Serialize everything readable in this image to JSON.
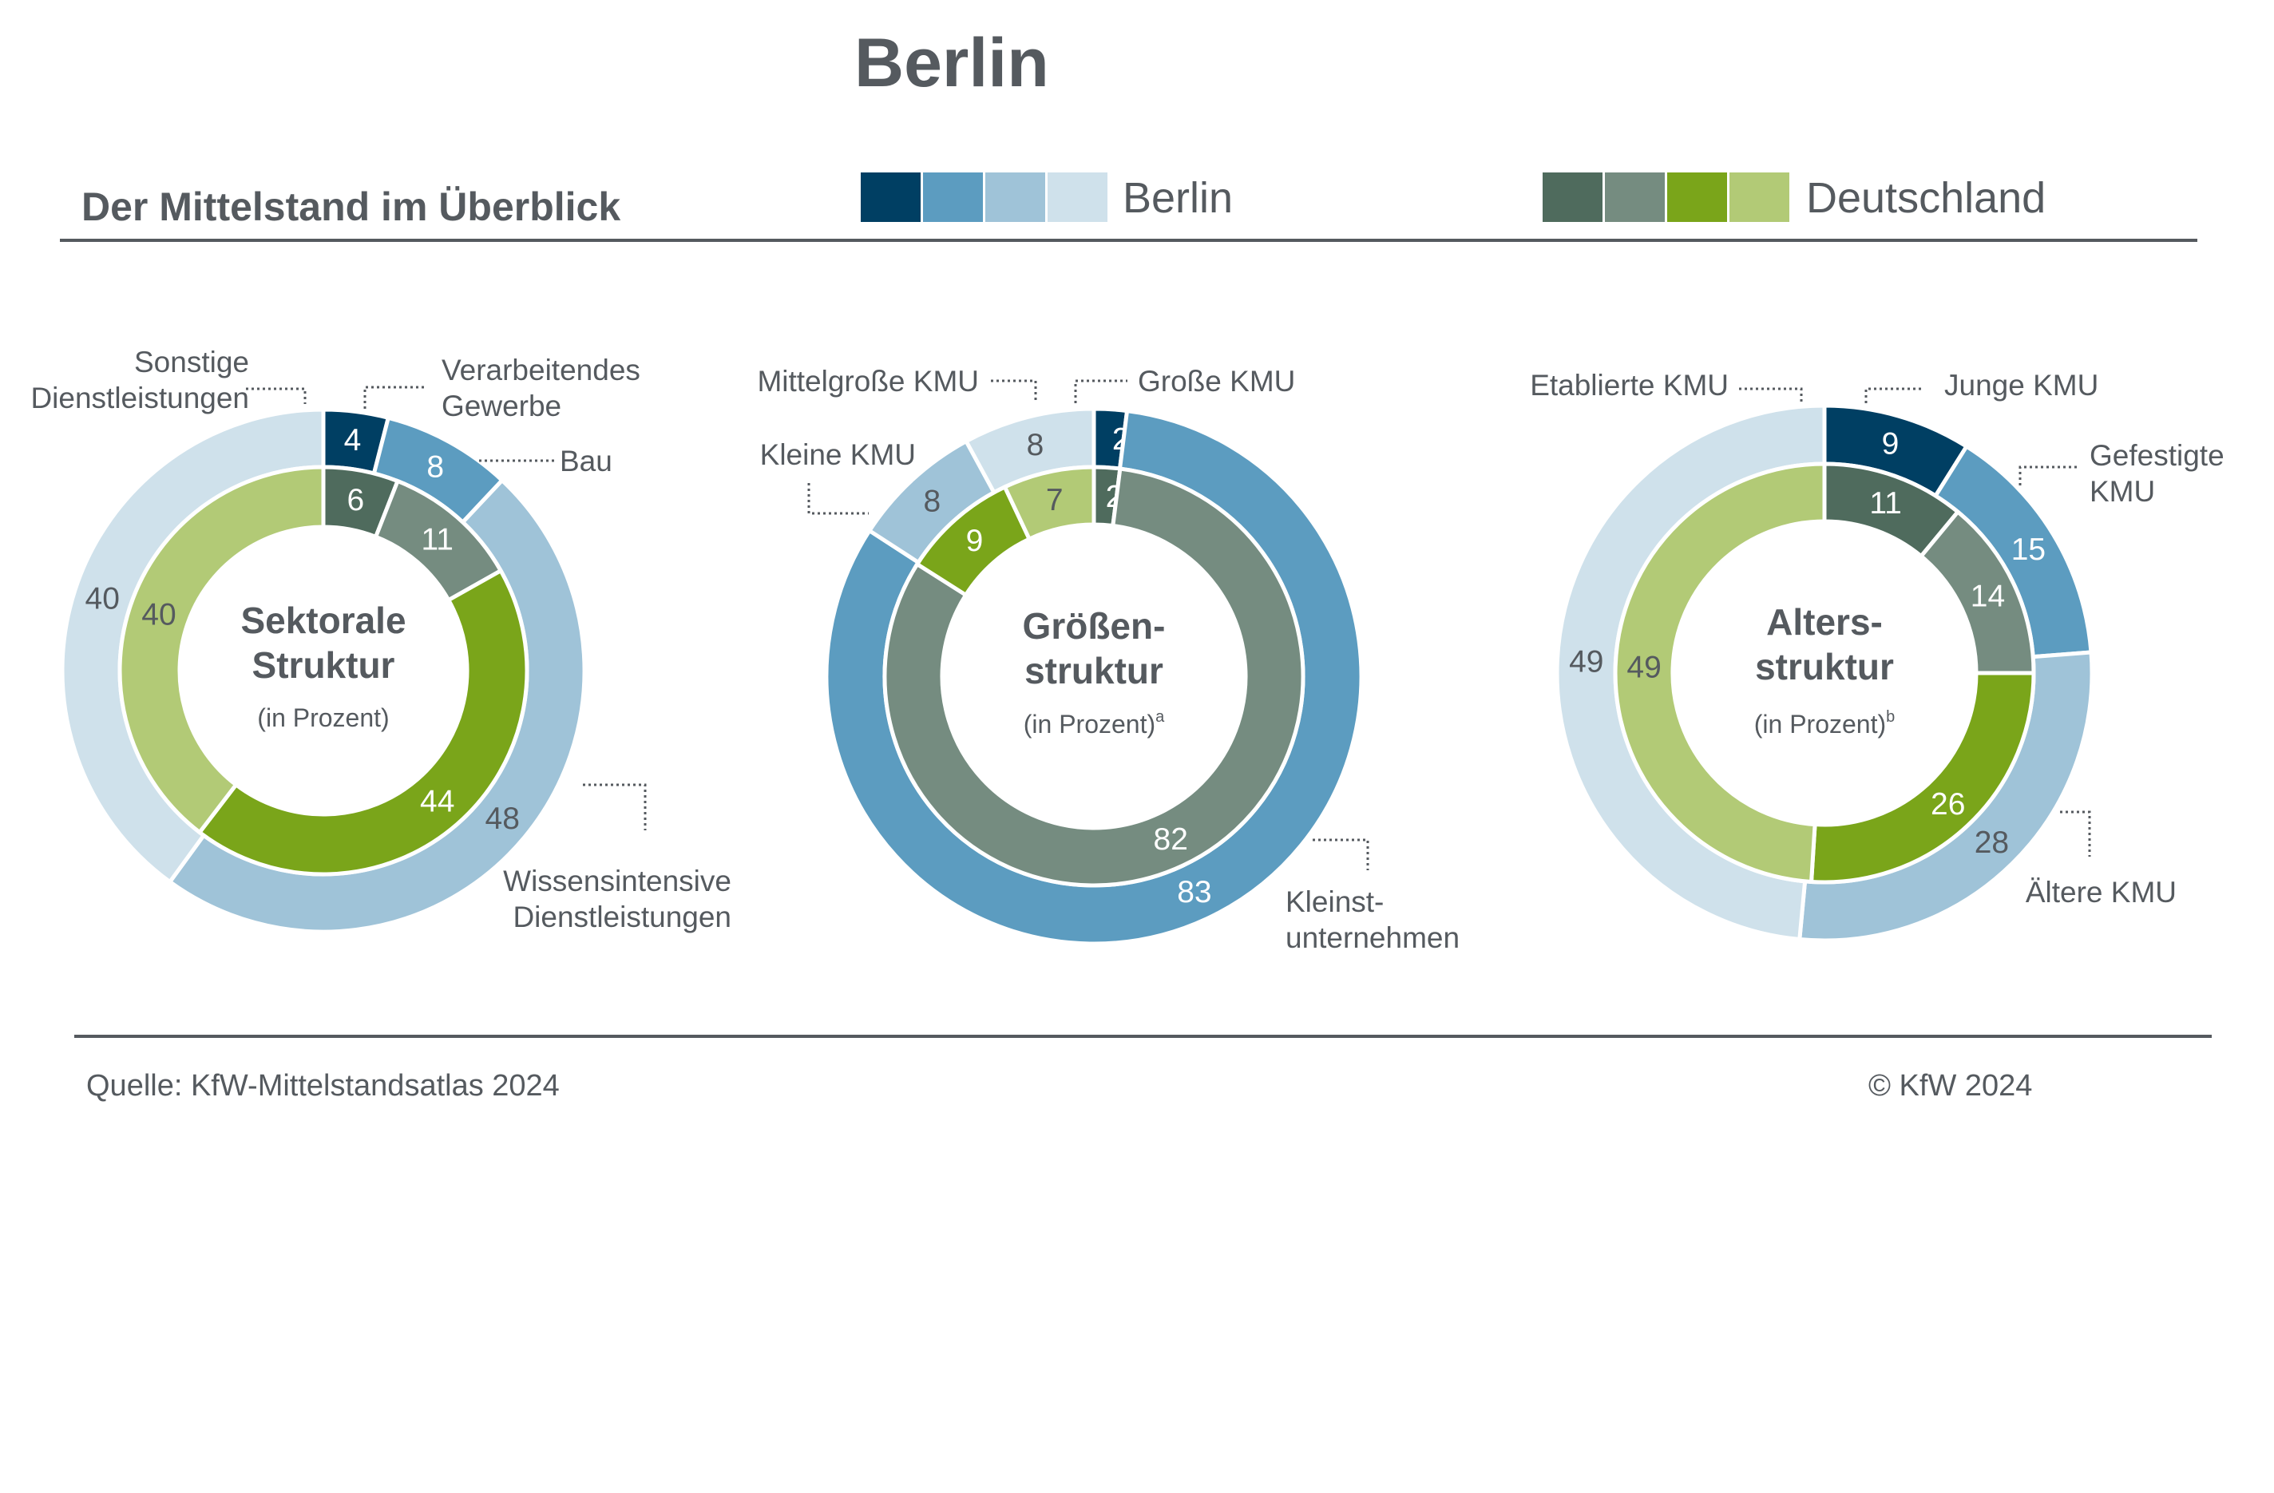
{
  "title": "Berlin",
  "subtitle": "Der Mittelstand im Überblick",
  "legend": [
    {
      "label": "Berlin",
      "colors": [
        "#003f63",
        "#5c9cc0",
        "#9fc3d8",
        "#cfe1eb"
      ]
    },
    {
      "label": "Deutschland",
      "colors": [
        "#4f6b5d",
        "#758c80",
        "#7aa51a",
        "#b2ca76"
      ]
    }
  ],
  "footer": {
    "source": "Quelle: KfW-Mittelstandsatlas 2024",
    "copyright": "© KfW 2024"
  },
  "chart_data": [
    {
      "type": "pie",
      "variant": "double-donut",
      "title": "Sektorale\nStruktur",
      "unit": "(in Prozent)",
      "footnote": "",
      "categories": [
        "Verarbeitendes Gewerbe",
        "Bau",
        "Wissensintensive Dienstleistungen",
        "Sonstige Dienstleistungen"
      ],
      "category_labels": [
        {
          "lines": [
            "Verarbeitendes",
            "Gewerbe"
          ]
        },
        {
          "lines": [
            "Bau"
          ]
        },
        {
          "lines": [
            "Wissensintensive",
            "Dienstleistungen"
          ]
        },
        {
          "lines": [
            "Sonstige",
            "Dienstleistungen"
          ]
        }
      ],
      "series": [
        {
          "name": "Berlin",
          "ring": "outer",
          "values": [
            4,
            8,
            48,
            40
          ]
        },
        {
          "name": "Deutschland",
          "ring": "inner",
          "values": [
            6,
            11,
            44,
            40
          ]
        }
      ]
    },
    {
      "type": "pie",
      "variant": "double-donut",
      "title": "Größen-\nstruktur",
      "unit": "(in Prozent)",
      "footnote": "a",
      "categories": [
        "Große KMU",
        "Kleinstunternehmen",
        "Kleine KMU",
        "Mittelgroße KMU"
      ],
      "category_labels": [
        {
          "lines": [
            "Große KMU"
          ]
        },
        {
          "lines": [
            "Kleinst-",
            "unternehmen"
          ]
        },
        {
          "lines": [
            "Kleine KMU"
          ]
        },
        {
          "lines": [
            "Mittelgroße KMU"
          ]
        }
      ],
      "series": [
        {
          "name": "Berlin",
          "ring": "outer",
          "values": [
            2,
            83,
            8,
            8
          ]
        },
        {
          "name": "Deutschland",
          "ring": "inner",
          "values": [
            2,
            82,
            9,
            7
          ]
        }
      ]
    },
    {
      "type": "pie",
      "variant": "double-donut",
      "title": "Alters-\nstruktur",
      "unit": "(in Prozent)",
      "footnote": "b",
      "categories": [
        "Junge KMU",
        "Gefestigte KMU",
        "Ältere KMU",
        "Etablierte KMU"
      ],
      "category_labels": [
        {
          "lines": [
            "Junge KMU"
          ]
        },
        {
          "lines": [
            "Gefestigte",
            "KMU"
          ]
        },
        {
          "lines": [
            "Ältere KMU"
          ]
        },
        {
          "lines": [
            "Etablierte KMU"
          ]
        }
      ],
      "series": [
        {
          "name": "Berlin",
          "ring": "outer",
          "values": [
            9,
            15,
            28,
            49
          ]
        },
        {
          "name": "Deutschland",
          "ring": "inner",
          "values": [
            11,
            14,
            26,
            49
          ]
        }
      ]
    }
  ]
}
